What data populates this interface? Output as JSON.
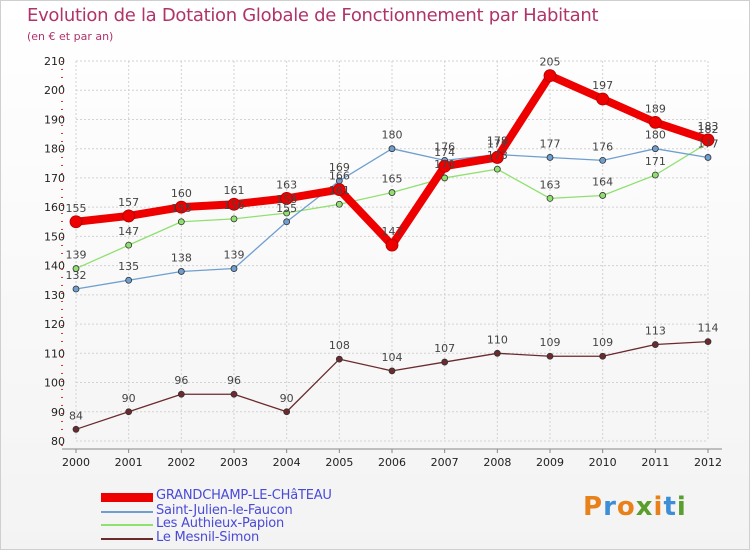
{
  "header": {
    "title": "Evolution de la Dotation Globale de Fonctionnement par Habitant",
    "subtitle": "(en € et par an)"
  },
  "logo": {
    "text": "Proxiti",
    "colors": [
      "#e8811a",
      "#3c8fd6",
      "#e8811a",
      "#5a9e2e",
      "#e8811a",
      "#3c8fd6",
      "#5a9e2e"
    ]
  },
  "chart_data": {
    "type": "line",
    "title": "Evolution de la Dotation Globale de Fonctionnement par Habitant",
    "subtitle": "(en € et par an)",
    "x": [
      2000,
      2001,
      2002,
      2003,
      2004,
      2005,
      2006,
      2007,
      2008,
      2009,
      2010,
      2011,
      2012
    ],
    "ylim": [
      80,
      210
    ],
    "yticks": [
      80,
      90,
      100,
      110,
      120,
      130,
      140,
      150,
      160,
      170,
      180,
      190,
      200,
      210
    ],
    "grid": true,
    "legend": "bottom-left",
    "series": [
      {
        "name": "GRANDCHAMP-LE-CHâTEAU",
        "color": "#ee0000",
        "values": [
          155,
          157,
          160,
          161,
          163,
          166,
          147,
          174,
          177,
          205,
          197,
          189,
          183
        ]
      },
      {
        "name": "Saint-Julien-le-Faucon",
        "color": "#6e9fd0",
        "values": [
          132,
          135,
          138,
          139,
          155,
          169,
          180,
          176,
          178,
          177,
          176,
          180,
          177
        ]
      },
      {
        "name": "Les Authieux-Papion",
        "color": "#90e070",
        "values": [
          139,
          147,
          155,
          156,
          158,
          161,
          165,
          170,
          173,
          163,
          164,
          171,
          182
        ]
      },
      {
        "name": "Le Mesnil-Simon",
        "color": "#6b2a2e",
        "values": [
          84,
          90,
          96,
          96,
          90,
          108,
          104,
          107,
          110,
          109,
          109,
          113,
          114
        ]
      }
    ]
  }
}
